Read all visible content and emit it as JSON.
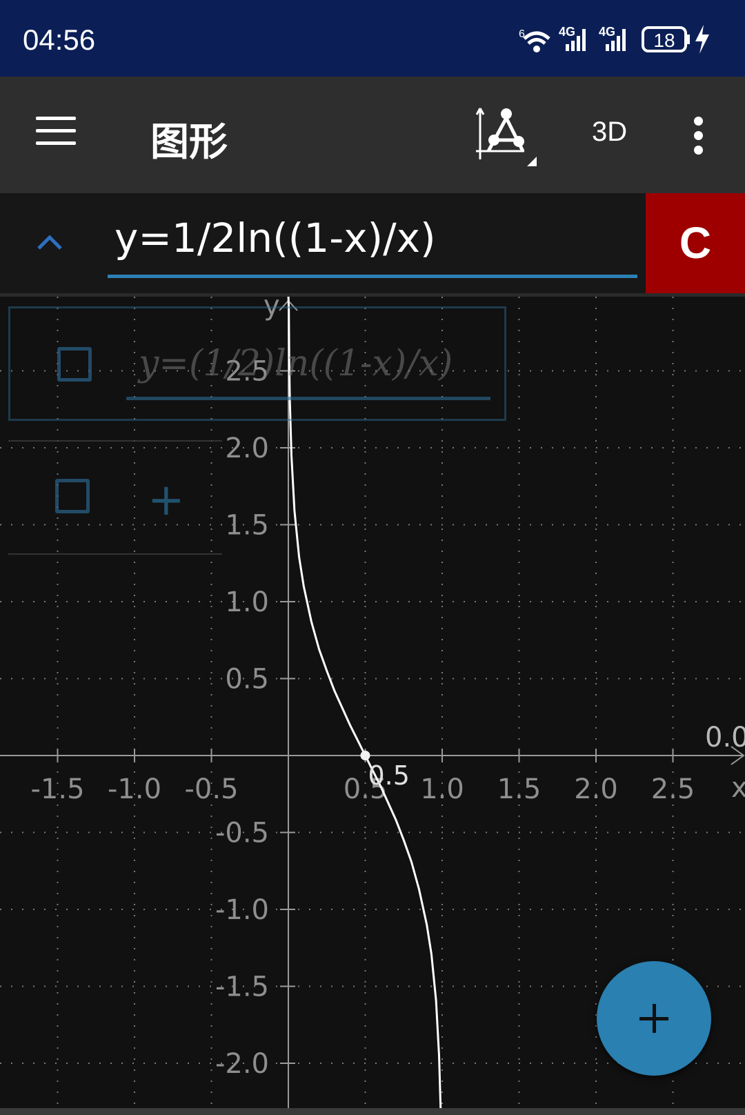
{
  "status_bar": {
    "time": "04:56",
    "battery": "18",
    "network_1": "4G",
    "network_2": "4G",
    "wifi_label": "6",
    "icons": [
      "wifi-icon",
      "signal-icon",
      "signal-icon",
      "battery-icon",
      "charging-icon"
    ]
  },
  "app_bar": {
    "title": "图形",
    "mode_3d_label": "3D",
    "icons": [
      "menu-icon",
      "geometry-tool-icon",
      "more-vertical-icon"
    ]
  },
  "input_bar": {
    "expression": "y=1/2ln((1-x)/x)",
    "clear_label": "C",
    "icons": [
      "chevron-up-icon"
    ]
  },
  "expression_list": {
    "items": [
      {
        "expression": "y=(1/2)ln((1-x)/x)",
        "checked": false
      }
    ],
    "add_label": "+"
  },
  "graph": {
    "x_axis_label": "x",
    "y_axis_label": "y",
    "origin_label": "0.0",
    "point_label": "0.5",
    "x_ticks": [
      "-1.5",
      "-1.0",
      "-0.5",
      "0.5",
      "1.0",
      "1.5",
      "2.0",
      "2.5"
    ],
    "y_ticks": [
      "2.5",
      "2.0",
      "1.5",
      "1.0",
      "0.5",
      "-0.5",
      "-1.0",
      "-1.5",
      "-2.0"
    ],
    "grid_color": "#7a7a7a",
    "curve_color": "#ffffff"
  },
  "chart_data": {
    "type": "line",
    "title": "",
    "xlabel": "x",
    "ylabel": "y",
    "xlim": [
      -1.9,
      3.0
    ],
    "ylim": [
      -2.3,
      3.0
    ],
    "grid": true,
    "function": "y=1/2ln((1-x)/x)",
    "series": [
      {
        "values_x": [
          0.003,
          0.006,
          0.01,
          0.02,
          0.04,
          0.07,
          0.1,
          0.15,
          0.2,
          0.25,
          0.3,
          0.35,
          0.4,
          0.45,
          0.5,
          0.55,
          0.6,
          0.65,
          0.7,
          0.75,
          0.8,
          0.85,
          0.9,
          0.93,
          0.96,
          0.98,
          0.99,
          0.994
        ],
        "values_y": [
          2.9,
          2.55,
          2.3,
          1.95,
          1.59,
          1.29,
          1.1,
          0.87,
          0.69,
          0.55,
          0.42,
          0.31,
          0.2,
          0.1,
          0.0,
          -0.1,
          -0.2,
          -0.31,
          -0.42,
          -0.55,
          -0.69,
          -0.87,
          -1.1,
          -1.29,
          -1.59,
          -1.95,
          -2.3,
          -2.55
        ]
      }
    ],
    "highlight_point": {
      "x": 0.5,
      "y": 0.0,
      "label": "0.5"
    }
  }
}
